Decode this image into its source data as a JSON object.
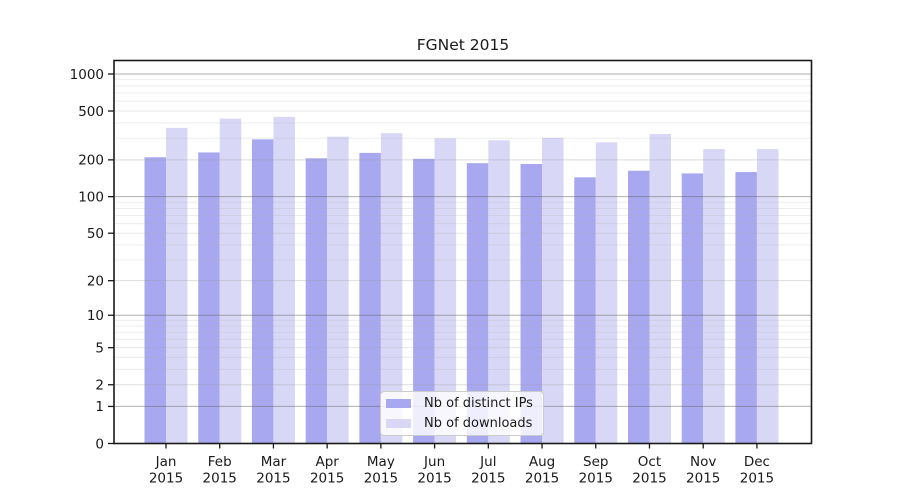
{
  "title": "FGNet 2015",
  "legend": {
    "items": [
      {
        "label": "Nb of distinct IPs",
        "color": "#a8a8f0"
      },
      {
        "label": "Nb of downloads",
        "color": "#d8d8f6"
      }
    ]
  },
  "chart_data": {
    "type": "bar",
    "title": "FGNet 2015",
    "categories": [
      "Jan 2015",
      "Feb 2015",
      "Mar 2015",
      "Apr 2015",
      "May 2015",
      "Jun 2015",
      "Jul 2015",
      "Aug 2015",
      "Sep 2015",
      "Oct 2015",
      "Nov 2015",
      "Dec 2015"
    ],
    "series": [
      {
        "name": "Nb of distinct IPs",
        "color": "#a8a8f0",
        "values": [
          210,
          230,
          294,
          206,
          228,
          204,
          188,
          185,
          144,
          163,
          155,
          159
        ]
      },
      {
        "name": "Nb of downloads",
        "color": "#d8d8f6",
        "values": [
          364,
          434,
          448,
          309,
          330,
          300,
          289,
          303,
          278,
          325,
          245,
          245
        ]
      }
    ],
    "xlabel": "",
    "ylabel": "",
    "y_scale": "symlog",
    "y_ticks": [
      0,
      1,
      2,
      5,
      10,
      20,
      50,
      100,
      200,
      500,
      1000
    ],
    "y_minor_ticks": [
      3,
      4,
      6,
      7,
      8,
      9,
      30,
      40,
      60,
      70,
      80,
      90,
      300,
      400,
      600,
      700,
      800,
      900
    ],
    "ylim": [
      0,
      1300
    ],
    "grid": true,
    "legend_position": "lower center",
    "colors": {
      "axis": "#1a1a1a",
      "grid_decade": "#b5b5b5",
      "grid_major": "#dddddd",
      "grid_minor": "#eeeeee"
    }
  }
}
